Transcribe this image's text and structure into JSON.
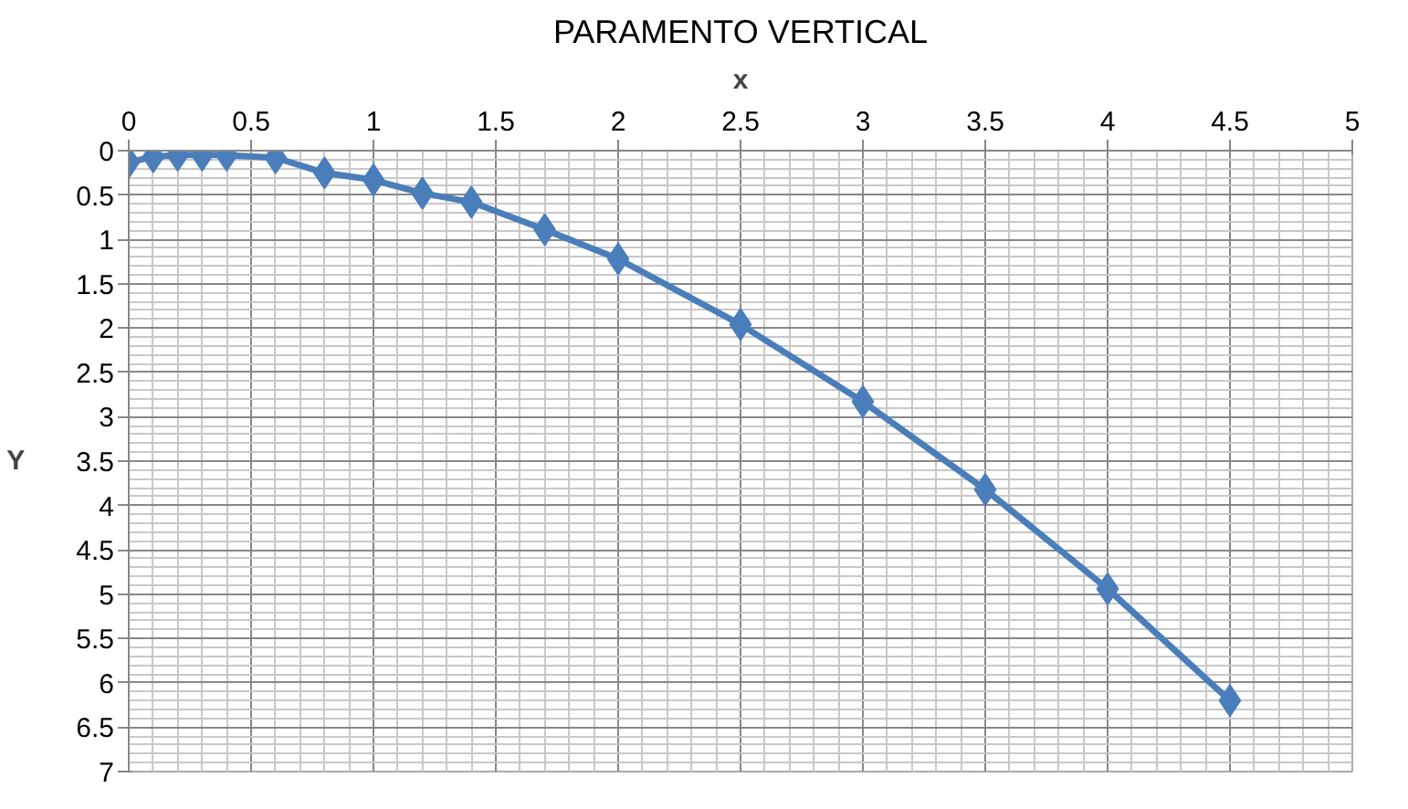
{
  "chart_data": {
    "type": "line",
    "title": "PARAMENTO VERTICAL",
    "xlabel": "x",
    "ylabel": "Y",
    "x": [
      0,
      0.1,
      0.2,
      0.3,
      0.4,
      0.6,
      0.8,
      1,
      1.2,
      1.4,
      1.7,
      2,
      2.5,
      3,
      3.5,
      4,
      4.5
    ],
    "series": [
      {
        "color": "#4a7ebb",
        "values": [
          0.13,
          0.07,
          0.05,
          0.05,
          0.05,
          0.08,
          0.25,
          0.33,
          0.48,
          0.58,
          0.89,
          1.22,
          1.96,
          2.83,
          3.82,
          4.94,
          6.2
        ]
      }
    ],
    "xlim": [
      0,
      5
    ],
    "xticks": [
      0,
      0.5,
      1,
      1.5,
      2,
      2.5,
      3,
      3.5,
      4,
      4.5,
      5
    ],
    "ylim": [
      7,
      0
    ],
    "yticks": [
      0,
      0.5,
      1,
      1.5,
      2,
      2.5,
      3,
      3.5,
      4,
      4.5,
      5,
      5.5,
      6,
      6.5,
      7
    ],
    "grid": true,
    "marker": "diamond",
    "line_style": "solid"
  }
}
